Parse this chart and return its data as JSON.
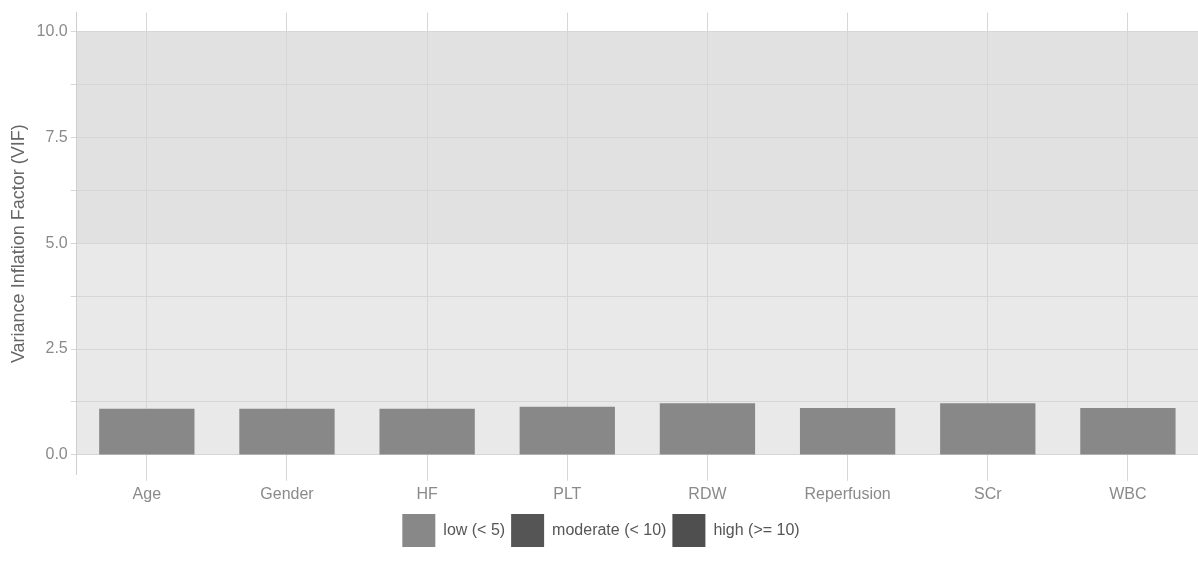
{
  "chart_data": {
    "type": "bar",
    "ylabel": "Variance Inflation Factor (VIF)",
    "categories": [
      "Age",
      "Gender",
      "HF",
      "PLT",
      "RDW",
      "Reperfusion",
      "SCr",
      "WBC"
    ],
    "series": [
      {
        "name": "low (< 5)",
        "color": "#888888",
        "values": [
          1.09,
          1.09,
          1.09,
          1.14,
          1.22,
          1.11,
          1.22,
          1.11
        ]
      },
      {
        "name": "moderate (< 10)",
        "color": "#555555",
        "values": [
          null,
          null,
          null,
          null,
          null,
          null,
          null,
          null
        ]
      },
      {
        "name": "high (>= 10)",
        "color": "#4f4f4f",
        "values": [
          null,
          null,
          null,
          null,
          null,
          null,
          null,
          null
        ]
      }
    ],
    "ylim": [
      -0.47,
      10.45
    ],
    "yticks": [
      {
        "value": 0,
        "label": "0.0"
      },
      {
        "value": 1.25,
        "label": null
      },
      {
        "value": 2.5,
        "label": "2.5"
      },
      {
        "value": 3.75,
        "label": null
      },
      {
        "value": 5,
        "label": "5.0"
      },
      {
        "value": 6.25,
        "label": null
      },
      {
        "value": 7.5,
        "label": "7.5"
      },
      {
        "value": 8.75,
        "label": null
      },
      {
        "value": 10,
        "label": "10.0"
      }
    ],
    "bands": [
      {
        "axis": "y",
        "from": 0,
        "to": 5,
        "color": "#e9e9e9"
      },
      {
        "axis": "y",
        "from": 5,
        "to": 10,
        "color": "#e1e1e1"
      }
    ],
    "grid": true,
    "legend": "bottom"
  }
}
